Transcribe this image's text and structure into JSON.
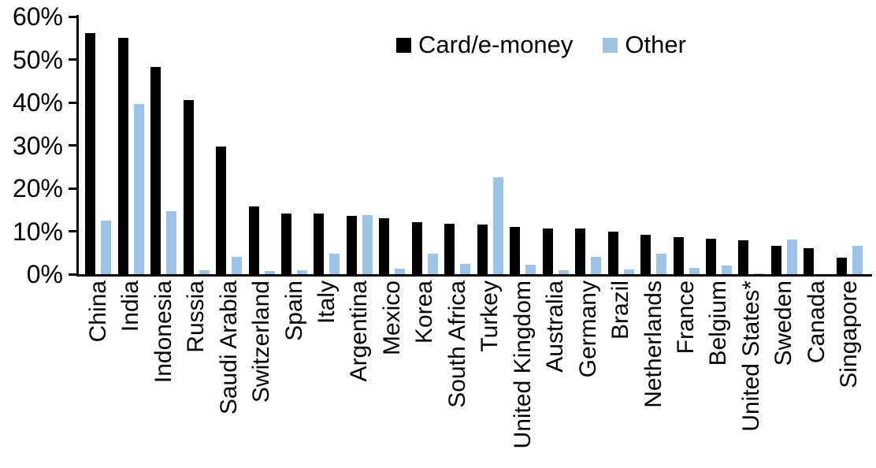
{
  "chart_data": {
    "type": "bar",
    "title": "",
    "legend_position": "top-center",
    "grid": false,
    "background_color": "#ffffff",
    "axis_color": "#000000",
    "ylim": [
      0,
      60
    ],
    "ytick_values": [
      0,
      10,
      20,
      30,
      40,
      50,
      60
    ],
    "yticks": [
      "0%",
      "10%",
      "20%",
      "30%",
      "40%",
      "50%",
      "60%"
    ],
    "xlabel": "",
    "ylabel": "",
    "categories": [
      "China",
      "India",
      "Indonesia",
      "Russia",
      "Saudi Arabia",
      "Switzerland",
      "Spain",
      "Italy",
      "Argentina",
      "Mexico",
      "Korea",
      "South Africa",
      "Turkey",
      "United Kingdom",
      "Australia",
      "Germany",
      "Brazil",
      "Netherlands",
      "France",
      "Belgium",
      "United States*",
      "Sweden",
      "Canada",
      "Singapore"
    ],
    "series": [
      {
        "name": "Card/e-money",
        "color": "#000000",
        "values": [
          56.2,
          55.0,
          48.3,
          40.5,
          29.8,
          15.7,
          14.2,
          14.2,
          13.5,
          13.0,
          12.2,
          11.7,
          11.6,
          11.0,
          10.6,
          10.6,
          10.0,
          9.2,
          8.7,
          8.2,
          7.9,
          6.6,
          6.0,
          3.9
        ]
      },
      {
        "name": "Other",
        "color": "#9DC3E6",
        "values": [
          12.4,
          39.7,
          14.6,
          1.0,
          4.0,
          0.8,
          1.0,
          4.7,
          13.8,
          1.3,
          4.7,
          2.4,
          22.5,
          2.3,
          0.9,
          4.0,
          1.2,
          4.8,
          1.5,
          2.0,
          0.2,
          8.0,
          0.0,
          6.7
        ]
      }
    ]
  }
}
